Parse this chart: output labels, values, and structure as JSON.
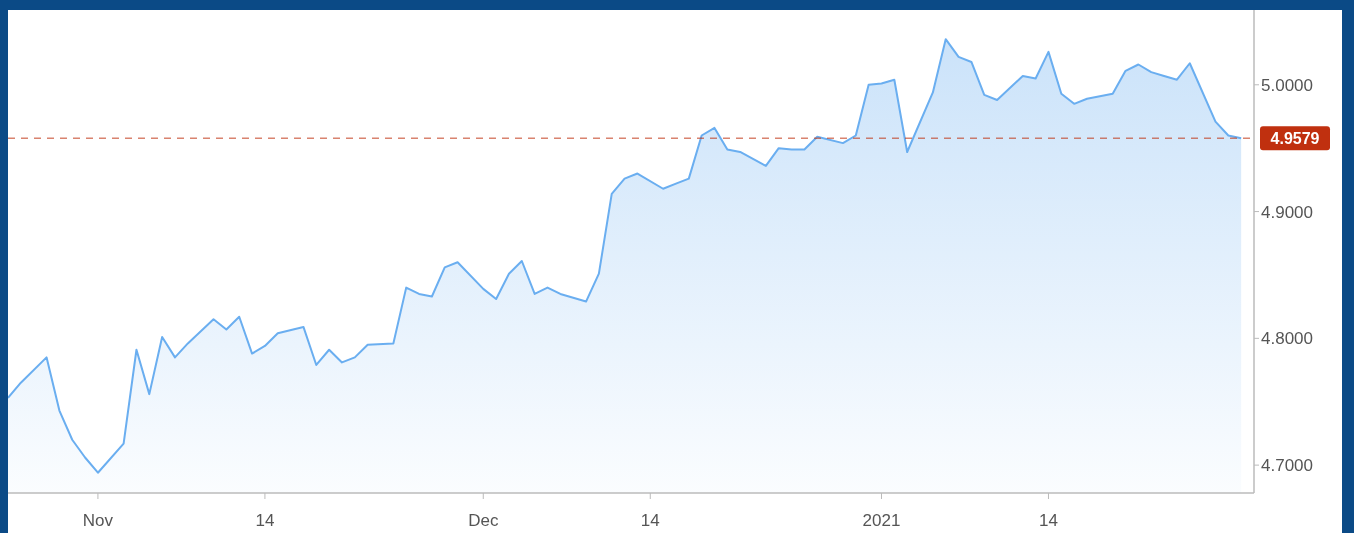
{
  "chart_data": {
    "type": "area",
    "x": [
      "2020-10-25",
      "2020-10-26",
      "2020-10-28",
      "2020-10-29",
      "2020-10-30",
      "2020-10-31",
      "2020-11-01",
      "2020-11-03",
      "2020-11-04",
      "2020-11-05",
      "2020-11-06",
      "2020-11-07",
      "2020-11-08",
      "2020-11-10",
      "2020-11-11",
      "2020-11-12",
      "2020-11-13",
      "2020-11-14",
      "2020-11-15",
      "2020-11-17",
      "2020-11-18",
      "2020-11-19",
      "2020-11-20",
      "2020-11-21",
      "2020-11-22",
      "2020-11-24",
      "2020-11-25",
      "2020-11-26",
      "2020-11-27",
      "2020-11-28",
      "2020-11-29",
      "2020-12-01",
      "2020-12-02",
      "2020-12-03",
      "2020-12-04",
      "2020-12-05",
      "2020-12-06",
      "2020-12-07",
      "2020-12-09",
      "2020-12-10",
      "2020-12-11",
      "2020-12-12",
      "2020-12-13",
      "2020-12-15",
      "2020-12-16",
      "2020-12-17",
      "2020-12-18",
      "2020-12-19",
      "2020-12-20",
      "2020-12-21",
      "2020-12-23",
      "2020-12-24",
      "2020-12-25",
      "2020-12-26",
      "2020-12-27",
      "2020-12-29",
      "2020-12-30",
      "2020-12-31",
      "2021-01-01",
      "2021-01-02",
      "2021-01-03",
      "2021-01-05",
      "2021-01-06",
      "2021-01-07",
      "2021-01-08",
      "2021-01-09",
      "2021-01-10",
      "2021-01-12",
      "2021-01-13",
      "2021-01-14",
      "2021-01-15",
      "2021-01-16",
      "2021-01-17",
      "2021-01-19",
      "2021-01-20",
      "2021-01-21",
      "2021-01-22",
      "2021-01-23",
      "2021-01-24",
      "2021-01-25",
      "2021-01-27",
      "2021-01-28",
      "2021-01-29"
    ],
    "series": [
      {
        "color": "#6aaef0",
        "values": [
          4.753,
          4.765,
          4.785,
          4.743,
          4.72,
          4.706,
          4.694,
          4.717,
          4.791,
          4.756,
          4.801,
          4.785,
          4.796,
          4.815,
          4.807,
          4.817,
          4.788,
          4.794,
          4.804,
          4.809,
          4.779,
          4.791,
          4.781,
          4.785,
          4.795,
          4.796,
          4.84,
          4.835,
          4.833,
          4.856,
          4.86,
          4.839,
          4.831,
          4.851,
          4.861,
          4.835,
          4.84,
          4.835,
          4.829,
          4.851,
          4.914,
          4.926,
          4.93,
          4.918,
          4.922,
          4.926,
          4.96,
          4.966,
          4.949,
          4.947,
          4.936,
          4.95,
          4.949,
          4.949,
          4.959,
          4.954,
          4.96,
          5.0,
          5.001,
          5.004,
          4.947,
          4.994,
          5.036,
          5.022,
          5.018,
          4.992,
          4.988,
          5.007,
          5.005,
          5.026,
          4.993,
          4.985,
          4.989,
          4.993,
          5.011,
          5.016,
          5.01,
          5.007,
          5.004,
          5.017,
          4.971,
          4.96,
          4.9579
        ]
      }
    ],
    "xlim": [
      "2020-10-25",
      "2021-01-30"
    ],
    "xticks": [
      {
        "value": "2020-11-01",
        "label": "Nov"
      },
      {
        "value": "2020-11-14",
        "label": "14"
      },
      {
        "value": "2020-12-01",
        "label": "Dec"
      },
      {
        "value": "2020-12-14",
        "label": "14"
      },
      {
        "value": "2021-01-01",
        "label": "2021"
      },
      {
        "value": "2021-01-14",
        "label": "14"
      }
    ],
    "ylim": [
      4.678,
      5.059
    ],
    "yticks": [
      {
        "value": 4.7,
        "label": "4.7000"
      },
      {
        "value": 4.8,
        "label": "4.8000"
      },
      {
        "value": 4.9,
        "label": "4.9000"
      },
      {
        "value": 5.0,
        "label": "5.0000"
      }
    ],
    "ref_lines": [
      {
        "axis": "y",
        "value": 4.9579,
        "label": "4.9579",
        "color": "#c0300f",
        "line_style": "dashed"
      }
    ],
    "grid": false
  }
}
